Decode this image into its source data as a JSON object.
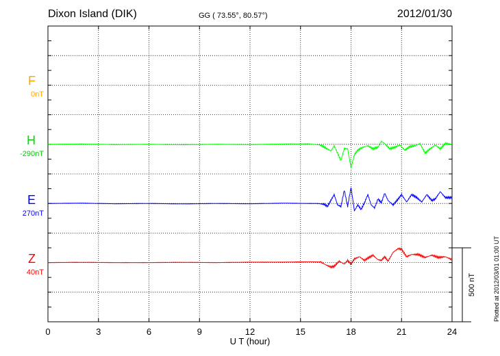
{
  "header": {
    "station": "Dixon Island (DIK)",
    "coords": "GG ( 73.55°,  80.57°)",
    "date": "2012/01/30"
  },
  "footer": {
    "plotted": "Plotted at 2012/03/01 01:00 UT"
  },
  "chart_data": {
    "type": "line",
    "xlabel": "U T (hour)",
    "xlim": [
      0,
      24
    ],
    "xticks": [
      0,
      3,
      6,
      9,
      12,
      15,
      18,
      21,
      24
    ],
    "ylim_nT": [
      -1000,
      1000
    ],
    "scale_bar_label": "500 nT",
    "scale_bar_nT": 500,
    "grid": true,
    "series": [
      {
        "name": "F",
        "baseline": "0nT",
        "color": "#ffa500",
        "offset_nT": 600,
        "x": [],
        "y": []
      },
      {
        "name": "H",
        "baseline": "-290nT",
        "color": "#00ff00",
        "offset_nT": 200,
        "x": [
          0,
          2,
          4,
          6,
          8,
          10,
          12,
          14,
          15.5,
          16.2,
          16.5,
          16.8,
          17,
          17.2,
          17.4,
          17.6,
          17.8,
          18,
          18.2,
          18.4,
          18.7,
          19,
          19.3,
          19.6,
          19.8,
          20,
          20.3,
          20.6,
          20.9,
          21.2,
          21.5,
          21.8,
          22.1,
          22.4,
          22.7,
          23,
          23.3,
          23.6,
          24
        ],
        "y": [
          0,
          2,
          -2,
          0,
          -3,
          0,
          -2,
          2,
          3,
          -5,
          -25,
          -45,
          -10,
          -60,
          -110,
          -30,
          -30,
          -160,
          -70,
          -40,
          -20,
          -10,
          -30,
          -20,
          20,
          5,
          -30,
          -20,
          -5,
          -40,
          -15,
          -10,
          5,
          -60,
          -30,
          -5,
          -30,
          5,
          0
        ]
      },
      {
        "name": "E",
        "baseline": "270nT",
        "color": "#0000ff",
        "offset_nT": -200,
        "x": [
          0,
          2,
          4,
          6,
          8,
          10,
          12,
          14,
          15.5,
          16,
          16.4,
          16.6,
          16.8,
          17,
          17.2,
          17.4,
          17.6,
          17.8,
          18,
          18.2,
          18.4,
          18.6,
          18.8,
          19,
          19.2,
          19.4,
          19.6,
          19.8,
          20,
          20.2,
          20.5,
          20.8,
          21,
          21.3,
          21.6,
          21.9,
          22.2,
          22.5,
          22.8,
          23,
          23.3,
          23.6,
          24
        ],
        "y": [
          0,
          2,
          -2,
          0,
          -3,
          0,
          -2,
          2,
          0,
          0,
          -5,
          -20,
          20,
          60,
          -10,
          -20,
          90,
          -20,
          110,
          -50,
          -10,
          -40,
          5,
          60,
          -10,
          -30,
          30,
          5,
          70,
          20,
          -10,
          30,
          60,
          10,
          60,
          40,
          10,
          60,
          20,
          30,
          80,
          40,
          40
        ]
      },
      {
        "name": "Z",
        "baseline": "40nT",
        "color": "#ff0000",
        "offset_nT": -600,
        "x": [
          0,
          2,
          4,
          6,
          8,
          10,
          12,
          14,
          15.5,
          16.2,
          16.5,
          16.8,
          17,
          17.3,
          17.6,
          17.8,
          18,
          18.2,
          18.5,
          18.8,
          19,
          19.3,
          19.6,
          19.8,
          20,
          20.2,
          20.5,
          20.8,
          21,
          21.3,
          21.6,
          22,
          22.4,
          22.8,
          23.2,
          23.6,
          24
        ],
        "y": [
          0,
          2,
          0,
          0,
          2,
          0,
          3,
          3,
          6,
          4,
          -15,
          -30,
          -25,
          10,
          -10,
          15,
          -10,
          25,
          40,
          15,
          30,
          50,
          20,
          15,
          40,
          10,
          70,
          95,
          90,
          40,
          55,
          55,
          35,
          50,
          35,
          40,
          20
        ]
      }
    ]
  }
}
